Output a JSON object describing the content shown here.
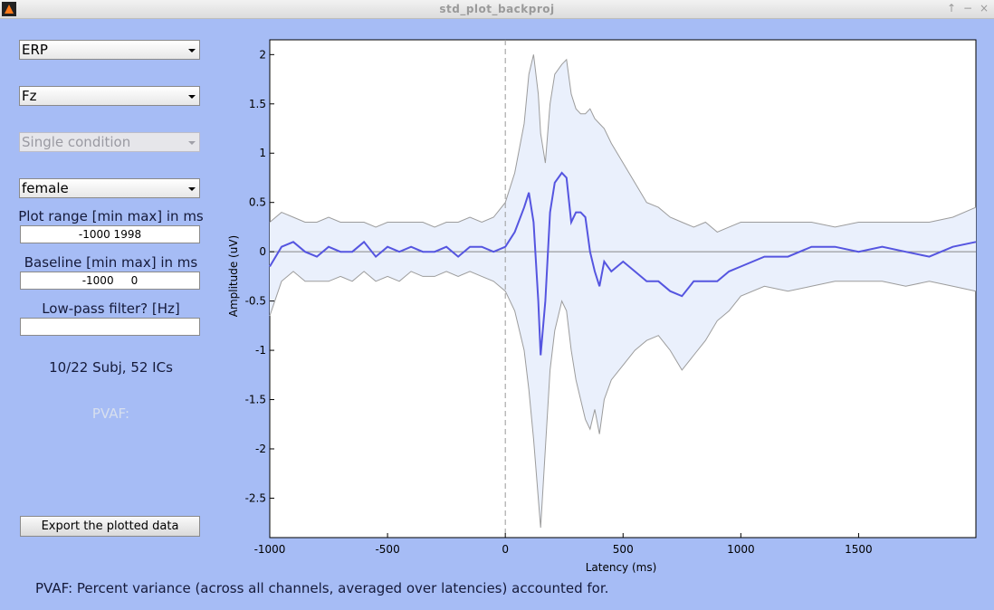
{
  "window": {
    "title": "std_plot_backproj"
  },
  "controls": {
    "measure_select": "ERP",
    "channel_select": "Fz",
    "condition_select": "Single condition",
    "group_select": "female",
    "plot_range_label": "Plot range [min max] in ms",
    "plot_range_value": "-1000 1998",
    "baseline_label": "Baseline [min max] in ms",
    "baseline_value": "-1000     0",
    "lowpass_label": "Low-pass filter? [Hz]",
    "lowpass_value": "",
    "subject_info": "10/22 Subj, 52 ICs",
    "pvaf_label": "PVAF:",
    "export_button": "Export the plotted data"
  },
  "footnote": "PVAF: Percent variance (across all channels, averaged over latencies) accounted for.",
  "chart_data": {
    "type": "line",
    "xlabel": "Latency (ms)",
    "ylabel": "Amplitude (uV)",
    "xlim": [
      -1000,
      1998
    ],
    "ylim": [
      -2.9,
      2.15
    ],
    "xticks": [
      -1000,
      -500,
      0,
      500,
      1000,
      1500
    ],
    "yticks": [
      2,
      1.5,
      1,
      0.5,
      0,
      -0.5,
      -1,
      -1.5,
      -2,
      -2.5
    ],
    "zero_marker_x": 0,
    "series": [
      {
        "role": "mean",
        "color": "#5555e0",
        "x": [
          -1000,
          -950,
          -900,
          -850,
          -800,
          -750,
          -700,
          -650,
          -600,
          -550,
          -500,
          -450,
          -400,
          -350,
          -300,
          -250,
          -200,
          -150,
          -100,
          -50,
          0,
          40,
          80,
          100,
          120,
          140,
          150,
          170,
          190,
          210,
          240,
          260,
          280,
          300,
          320,
          340,
          360,
          380,
          400,
          420,
          450,
          500,
          550,
          600,
          650,
          700,
          750,
          800,
          850,
          900,
          950,
          1000,
          1100,
          1200,
          1300,
          1400,
          1500,
          1600,
          1700,
          1800,
          1900,
          1998
        ],
        "y": [
          -0.15,
          0.05,
          0.1,
          0.0,
          -0.05,
          0.05,
          0.0,
          0.0,
          0.1,
          -0.05,
          0.05,
          0.0,
          0.05,
          0.0,
          0.0,
          0.05,
          -0.05,
          0.05,
          0.05,
          0.0,
          0.05,
          0.2,
          0.45,
          0.6,
          0.3,
          -0.5,
          -1.05,
          -0.5,
          0.4,
          0.7,
          0.8,
          0.75,
          0.3,
          0.4,
          0.4,
          0.35,
          0.0,
          -0.2,
          -0.35,
          -0.1,
          -0.2,
          -0.1,
          -0.2,
          -0.3,
          -0.3,
          -0.4,
          -0.45,
          -0.3,
          -0.3,
          -0.3,
          -0.2,
          -0.15,
          -0.05,
          -0.05,
          0.05,
          0.05,
          0.0,
          0.05,
          0.0,
          -0.05,
          0.05,
          0.1
        ]
      },
      {
        "role": "upper_bound",
        "color": "#9c9c9c",
        "x": [
          -1000,
          -950,
          -900,
          -850,
          -800,
          -750,
          -700,
          -650,
          -600,
          -550,
          -500,
          -450,
          -400,
          -350,
          -300,
          -250,
          -200,
          -150,
          -100,
          -50,
          0,
          40,
          80,
          100,
          120,
          140,
          150,
          170,
          190,
          210,
          240,
          260,
          280,
          300,
          320,
          340,
          360,
          380,
          400,
          420,
          450,
          500,
          550,
          600,
          650,
          700,
          750,
          800,
          850,
          900,
          950,
          1000,
          1100,
          1200,
          1300,
          1400,
          1500,
          1600,
          1700,
          1800,
          1900,
          1998
        ],
        "y": [
          0.3,
          0.4,
          0.35,
          0.3,
          0.3,
          0.35,
          0.3,
          0.3,
          0.3,
          0.25,
          0.3,
          0.3,
          0.3,
          0.3,
          0.25,
          0.3,
          0.3,
          0.35,
          0.3,
          0.35,
          0.5,
          0.8,
          1.3,
          1.8,
          2.0,
          1.6,
          1.2,
          0.9,
          1.5,
          1.8,
          1.9,
          1.95,
          1.6,
          1.45,
          1.4,
          1.4,
          1.45,
          1.35,
          1.3,
          1.25,
          1.1,
          0.9,
          0.7,
          0.5,
          0.45,
          0.35,
          0.3,
          0.25,
          0.3,
          0.2,
          0.25,
          0.3,
          0.3,
          0.3,
          0.3,
          0.25,
          0.3,
          0.3,
          0.3,
          0.3,
          0.35,
          0.45
        ]
      },
      {
        "role": "lower_bound",
        "color": "#9c9c9c",
        "x": [
          -1000,
          -950,
          -900,
          -850,
          -800,
          -750,
          -700,
          -650,
          -600,
          -550,
          -500,
          -450,
          -400,
          -350,
          -300,
          -250,
          -200,
          -150,
          -100,
          -50,
          0,
          40,
          80,
          100,
          120,
          140,
          150,
          170,
          190,
          210,
          240,
          260,
          280,
          300,
          320,
          340,
          360,
          380,
          400,
          420,
          450,
          500,
          550,
          600,
          650,
          700,
          750,
          800,
          850,
          900,
          950,
          1000,
          1100,
          1200,
          1300,
          1400,
          1500,
          1600,
          1700,
          1800,
          1900,
          1998
        ],
        "y": [
          -0.65,
          -0.3,
          -0.2,
          -0.3,
          -0.3,
          -0.3,
          -0.25,
          -0.3,
          -0.2,
          -0.3,
          -0.25,
          -0.3,
          -0.2,
          -0.25,
          -0.25,
          -0.2,
          -0.25,
          -0.2,
          -0.25,
          -0.3,
          -0.4,
          -0.6,
          -1.0,
          -1.4,
          -1.9,
          -2.5,
          -2.8,
          -2.0,
          -1.2,
          -0.8,
          -0.5,
          -0.6,
          -1.0,
          -1.3,
          -1.5,
          -1.7,
          -1.8,
          -1.6,
          -1.85,
          -1.5,
          -1.3,
          -1.15,
          -1.0,
          -0.9,
          -0.85,
          -1.0,
          -1.2,
          -1.05,
          -0.9,
          -0.7,
          -0.6,
          -0.45,
          -0.35,
          -0.4,
          -0.35,
          -0.3,
          -0.3,
          -0.3,
          -0.35,
          -0.3,
          -0.35,
          -0.4
        ]
      }
    ],
    "band_fill": "#eaf0fc",
    "zero_line": true,
    "grid": false
  }
}
